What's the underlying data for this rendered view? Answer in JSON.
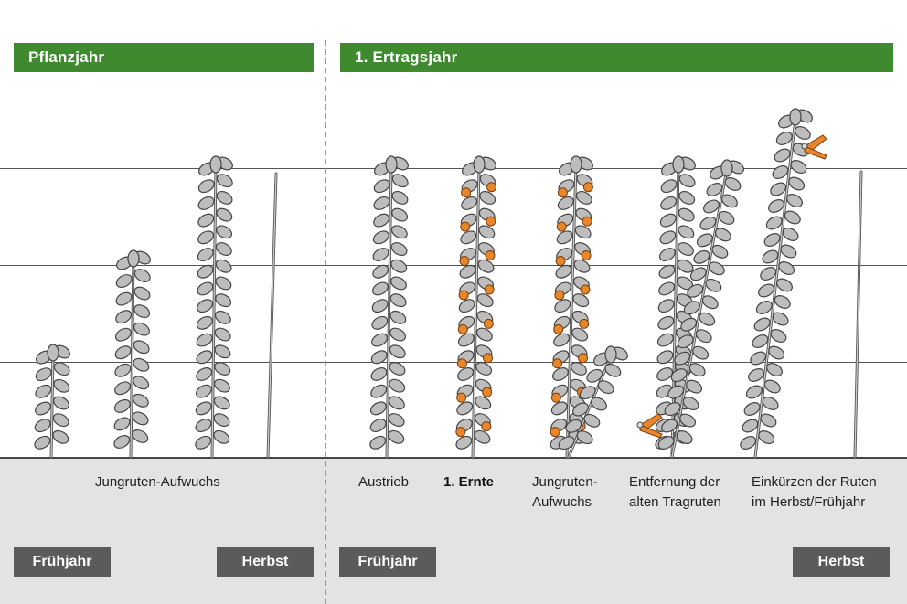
{
  "headers": {
    "left": "Pflanzjahr",
    "right": "1. Ertragsjahr"
  },
  "labels": {
    "jungruten_aufwuchs": "Jungruten-Aufwuchs",
    "austrieb": "Austrieb",
    "ernte": "1. Ernte",
    "jungruten_2_line1": "Jungruten-",
    "jungruten_2_line2": "Aufwuchs",
    "entfernung_line1": "Entfernung der",
    "entfernung_line2": "alten Tragruten",
    "einkuerzen_line1": "Einkürzen der Ruten",
    "einkuerzen_line2": "im Herbst/Frühjahr"
  },
  "seasons": {
    "left_spring": "Frühjahr",
    "left_autumn": "Herbst",
    "right_spring": "Frühjahr",
    "right_autumn": "Herbst"
  },
  "colors": {
    "header_green": "#3f8a2e",
    "season_gray": "#5b5b5b",
    "ground_gray": "#e3e3e3",
    "divider_orange": "#e8862a",
    "berry_orange": "#e8862a",
    "leaf_gray": "#bdbdbd"
  }
}
